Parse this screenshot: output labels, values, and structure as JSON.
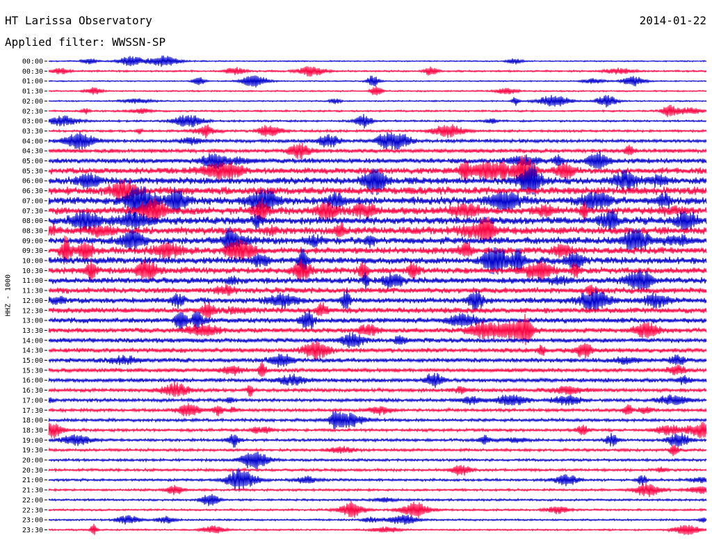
{
  "header": {
    "title": "HT Larissa Observatory",
    "date": "2014-01-22",
    "filter": "Applied filter: WWSSN-SP"
  },
  "chart_data": {
    "type": "line",
    "title": "HT Larissa Observatory",
    "ylabel": "HHZ - 1000",
    "colors": [
      "#0000cc",
      "#ff0040"
    ],
    "tick_labels": [
      "00:00",
      "00:30",
      "01:00",
      "01:30",
      "02:00",
      "02:30",
      "03:00",
      "03:30",
      "04:00",
      "04:30",
      "05:00",
      "05:30",
      "06:00",
      "06:30",
      "07:00",
      "07:30",
      "08:00",
      "08:30",
      "09:00",
      "09:30",
      "10:00",
      "10:30",
      "11:00",
      "11:30",
      "12:00",
      "12:30",
      "13:00",
      "13:30",
      "14:00",
      "14:30",
      "15:00",
      "15:30",
      "16:00",
      "16:30",
      "17:00",
      "17:30",
      "18:00",
      "18:30",
      "19:00",
      "19:30",
      "20:00",
      "20:30",
      "21:00",
      "21:30",
      "22:00",
      "22:30",
      "23:00",
      "23:30"
    ],
    "noise_levels": [
      0.8,
      1.2,
      0.8,
      1.0,
      0.9,
      1.2,
      1.3,
      1.6,
      2.2,
      2.6,
      3.2,
      4.0,
      4.6,
      5.0,
      5.0,
      4.8,
      5.0,
      5.0,
      4.6,
      4.4,
      4.4,
      4.2,
      4.0,
      3.8,
      3.6,
      3.6,
      3.4,
      3.2,
      3.0,
      3.0,
      2.8,
      2.6,
      2.6,
      2.4,
      2.2,
      2.1,
      2.0,
      1.9,
      1.8,
      1.8,
      1.7,
      1.7,
      1.6,
      1.5,
      1.4,
      1.3,
      1.2,
      1.1
    ]
  }
}
